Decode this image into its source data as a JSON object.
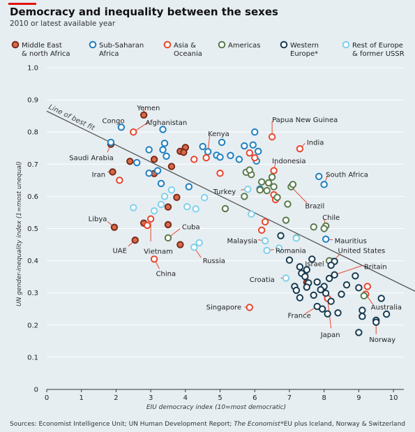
{
  "title": "Democracy and inequality between the sexes",
  "subtitle": "2010 or latest available year",
  "source": "Sources: Economist Intelligence Unit; UN Human Development Report; ",
  "source_italic": "The Economist",
  "footnote": "*EU plus Iceland, Norway & Switzerland",
  "colors": {
    "background": "#e6eef2",
    "gridline": "#ffffff",
    "fit_line": "#555555"
  },
  "chart_data": {
    "type": "scatter",
    "xlabel": "EIU democracy index (10=most democratic)",
    "ylabel": "UN gender-inequality index (1=most unequal)",
    "xlim": [
      0,
      10.3
    ],
    "ylim": [
      0,
      1.0
    ],
    "x_ticks": [
      "0",
      "1",
      "2",
      "3",
      "4",
      "5",
      "6",
      "7",
      "8",
      "9",
      "10"
    ],
    "y_ticks": [
      "0",
      "0.1",
      "0.2",
      "0.3",
      "0.4",
      "0.5",
      "0.6",
      "0.7",
      "0.8",
      "0.9",
      "1.0"
    ],
    "fit_line": {
      "label": "Line of best fit",
      "x": [
        0,
        10.8
      ],
      "y": [
        0.865,
        0.3
      ]
    },
    "series": [
      {
        "name": "Middle East & north Africa",
        "legend": [
          "Middle East",
          "& north Africa"
        ],
        "stroke": "#7a2a1a",
        "fill": "#d96b4a",
        "points": [
          [
            2.8,
            0.853
          ],
          [
            1.85,
            0.762
          ],
          [
            1.9,
            0.676
          ],
          [
            2.4,
            0.709
          ],
          [
            3.1,
            0.715
          ],
          [
            3.6,
            0.693
          ],
          [
            3.85,
            0.74
          ],
          [
            4.0,
            0.752
          ],
          [
            3.95,
            0.737
          ],
          [
            3.1,
            0.671
          ],
          [
            3.75,
            0.597
          ],
          [
            3.5,
            0.567
          ],
          [
            3.5,
            0.512
          ],
          [
            2.8,
            0.517
          ],
          [
            1.95,
            0.504
          ],
          [
            2.55,
            0.464
          ],
          [
            3.85,
            0.45
          ],
          [
            7.5,
            0.333
          ]
        ]
      },
      {
        "name": "Sub-Saharan Africa",
        "legend": [
          "Sub-Saharan",
          "Africa"
        ],
        "stroke": "#1e7fbf",
        "fill": "#ffffff",
        "points": [
          [
            2.15,
            0.815
          ],
          [
            1.85,
            0.768
          ],
          [
            3.35,
            0.808
          ],
          [
            3.4,
            0.765
          ],
          [
            3.35,
            0.745
          ],
          [
            3.45,
            0.725
          ],
          [
            2.95,
            0.745
          ],
          [
            2.6,
            0.705
          ],
          [
            2.95,
            0.672
          ],
          [
            3.2,
            0.68
          ],
          [
            4.5,
            0.755
          ],
          [
            4.65,
            0.739
          ],
          [
            4.9,
            0.728
          ],
          [
            5.05,
            0.768
          ],
          [
            5.0,
            0.722
          ],
          [
            5.3,
            0.727
          ],
          [
            5.7,
            0.757
          ],
          [
            5.95,
            0.76
          ],
          [
            6.0,
            0.8
          ],
          [
            6.1,
            0.74
          ],
          [
            6.05,
            0.71
          ],
          [
            5.55,
            0.715
          ],
          [
            4.1,
            0.63
          ],
          [
            3.3,
            0.64
          ],
          [
            7.85,
            0.662
          ],
          [
            8.0,
            0.637
          ],
          [
            8.05,
            0.467
          ],
          [
            6.15,
            0.623
          ]
        ]
      },
      {
        "name": "Asia & Oceania",
        "legend": [
          "Asia &",
          "Oceania"
        ],
        "stroke": "#e8452c",
        "fill": "#ffffff",
        "points": [
          [
            2.5,
            0.8
          ],
          [
            2.1,
            0.65
          ],
          [
            4.6,
            0.72
          ],
          [
            4.25,
            0.715
          ],
          [
            5.0,
            0.672
          ],
          [
            5.85,
            0.735
          ],
          [
            6.0,
            0.72
          ],
          [
            6.5,
            0.785
          ],
          [
            7.3,
            0.748
          ],
          [
            6.55,
            0.68
          ],
          [
            6.55,
            0.605
          ],
          [
            6.6,
            0.59
          ],
          [
            6.2,
            0.495
          ],
          [
            6.3,
            0.521
          ],
          [
            3.0,
            0.53
          ],
          [
            2.9,
            0.51
          ],
          [
            3.1,
            0.405
          ],
          [
            5.85,
            0.255
          ],
          [
            8.1,
            0.283
          ],
          [
            9.25,
            0.32
          ],
          [
            9.2,
            0.296
          ]
        ]
      },
      {
        "name": "Americas",
        "legend": [
          "Americas"
        ],
        "stroke": "#5a7a4a",
        "fill": "#ffffff",
        "points": [
          [
            5.75,
            0.675
          ],
          [
            5.9,
            0.668
          ],
          [
            5.85,
            0.682
          ],
          [
            6.2,
            0.645
          ],
          [
            6.4,
            0.642
          ],
          [
            6.5,
            0.66
          ],
          [
            6.55,
            0.63
          ],
          [
            6.15,
            0.62
          ],
          [
            6.35,
            0.618
          ],
          [
            5.7,
            0.6
          ],
          [
            7.05,
            0.63
          ],
          [
            7.1,
            0.637
          ],
          [
            6.65,
            0.597
          ],
          [
            6.95,
            0.576
          ],
          [
            5.15,
            0.562
          ],
          [
            3.5,
            0.471
          ],
          [
            6.9,
            0.526
          ],
          [
            7.2,
            0.471
          ],
          [
            7.7,
            0.505
          ],
          [
            8.05,
            0.508
          ],
          [
            8.0,
            0.5
          ],
          [
            8.25,
            0.398
          ],
          [
            8.15,
            0.4
          ],
          [
            9.15,
            0.291
          ]
        ]
      },
      {
        "name": "Western Europe*",
        "legend": [
          "Western",
          "Europe*"
        ],
        "stroke": "#173a50",
        "fill": "#ffffff",
        "points": [
          [
            6.75,
            0.478
          ],
          [
            7.0,
            0.402
          ],
          [
            7.3,
            0.381
          ],
          [
            7.35,
            0.361
          ],
          [
            7.5,
            0.372
          ],
          [
            7.45,
            0.351
          ],
          [
            7.65,
            0.405
          ],
          [
            7.55,
            0.331
          ],
          [
            7.5,
            0.318
          ],
          [
            7.15,
            0.32
          ],
          [
            7.2,
            0.308
          ],
          [
            7.3,
            0.285
          ],
          [
            7.8,
            0.334
          ],
          [
            8.0,
            0.32
          ],
          [
            8.15,
            0.345
          ],
          [
            8.3,
            0.356
          ],
          [
            8.3,
            0.398
          ],
          [
            8.2,
            0.386
          ],
          [
            7.9,
            0.31
          ],
          [
            8.05,
            0.299
          ],
          [
            7.7,
            0.293
          ],
          [
            8.2,
            0.274
          ],
          [
            8.65,
            0.325
          ],
          [
            8.9,
            0.353
          ],
          [
            9.0,
            0.316
          ],
          [
            8.5,
            0.296
          ],
          [
            7.8,
            0.258
          ],
          [
            7.95,
            0.25
          ],
          [
            8.1,
            0.235
          ],
          [
            8.4,
            0.238
          ],
          [
            9.1,
            0.246
          ],
          [
            9.1,
            0.227
          ],
          [
            9.5,
            0.215
          ],
          [
            9.65,
            0.283
          ],
          [
            9.8,
            0.234
          ],
          [
            9.0,
            0.177
          ],
          [
            9.5,
            0.209
          ]
        ]
      },
      {
        "name": "Rest of Europe & former USSR",
        "legend": [
          "Rest of Europe",
          "& former USSR"
        ],
        "stroke": "#7fd0ec",
        "fill": "#ffffff",
        "points": [
          [
            2.5,
            0.565
          ],
          [
            3.1,
            0.555
          ],
          [
            3.3,
            0.575
          ],
          [
            3.4,
            0.6
          ],
          [
            3.6,
            0.62
          ],
          [
            4.05,
            0.568
          ],
          [
            4.3,
            0.561
          ],
          [
            4.55,
            0.596
          ],
          [
            4.4,
            0.456
          ],
          [
            4.25,
            0.442
          ],
          [
            5.8,
            0.622
          ],
          [
            5.9,
            0.545
          ],
          [
            6.3,
            0.462
          ],
          [
            6.35,
            0.432
          ],
          [
            6.7,
            0.439
          ],
          [
            6.9,
            0.346
          ],
          [
            7.2,
            0.47
          ]
        ]
      }
    ],
    "labels": [
      {
        "text": "Yemen",
        "x": 2.6,
        "y": 0.875,
        "anchor": "start",
        "point": [
          2.8,
          0.853
        ],
        "lx": 2.8,
        "ly": 0.876
      },
      {
        "text": "Congo",
        "x": 1.6,
        "y": 0.835,
        "anchor": "start",
        "point": [
          2.15,
          0.815
        ],
        "lx": 2.1,
        "ly": 0.828
      },
      {
        "text": "Afghanistan",
        "x": 2.85,
        "y": 0.83,
        "anchor": "start",
        "point": [
          2.5,
          0.8
        ],
        "lx": 2.95,
        "ly": 0.832
      },
      {
        "text": "Kenya",
        "x": 4.65,
        "y": 0.795,
        "anchor": "start",
        "point": [
          4.65,
          0.739
        ],
        "lx": 4.7,
        "ly": 0.79
      },
      {
        "text": "Papua New Guinea",
        "x": 6.5,
        "y": 0.838,
        "anchor": "start",
        "point": [
          6.5,
          0.785
        ],
        "lx": 6.5,
        "ly": 0.834
      },
      {
        "text": "India",
        "x": 7.5,
        "y": 0.768,
        "anchor": "start",
        "point": [
          7.3,
          0.748
        ],
        "lx": 7.45,
        "ly": 0.765
      },
      {
        "text": "Saudi Arabia",
        "x": 0.65,
        "y": 0.72,
        "anchor": "start",
        "point": [
          1.85,
          0.762
        ],
        "lx": 1.75,
        "ly": 0.737
      },
      {
        "text": "Indonesia",
        "x": 6.5,
        "y": 0.71,
        "anchor": "start",
        "point": [
          6.55,
          0.68
        ],
        "lx": 6.6,
        "ly": 0.705
      },
      {
        "text": "Iran",
        "x": 1.3,
        "y": 0.668,
        "anchor": "start",
        "point": [
          1.9,
          0.676
        ],
        "lx": 1.75,
        "ly": 0.676
      },
      {
        "text": "South Africa",
        "x": 8.05,
        "y": 0.668,
        "anchor": "start",
        "point": [
          8.0,
          0.637
        ],
        "lx": 8.1,
        "ly": 0.666
      },
      {
        "text": "Turkey",
        "x": 4.8,
        "y": 0.615,
        "anchor": "start",
        "point": [
          5.8,
          0.622
        ],
        "lx": 5.6,
        "ly": 0.62
      },
      {
        "text": "Brazil",
        "x": 7.45,
        "y": 0.57,
        "anchor": "start",
        "point": [
          7.05,
          0.63
        ],
        "lx": 7.5,
        "ly": 0.58
      },
      {
        "text": "Chile",
        "x": 7.95,
        "y": 0.535,
        "anchor": "start",
        "point": [
          8.05,
          0.508
        ],
        "lx": 8.0,
        "ly": 0.528
      },
      {
        "text": "Libya",
        "x": 1.2,
        "y": 0.53,
        "anchor": "start",
        "point": [
          1.95,
          0.504
        ],
        "lx": 1.75,
        "ly": 0.522
      },
      {
        "text": "Cuba",
        "x": 3.9,
        "y": 0.505,
        "anchor": "start",
        "point": [
          3.5,
          0.471
        ],
        "lx": 3.85,
        "ly": 0.5
      },
      {
        "text": "Mauritius",
        "x": 8.3,
        "y": 0.462,
        "anchor": "start",
        "point": [
          8.05,
          0.467
        ],
        "lx": 8.25,
        "ly": 0.465
      },
      {
        "text": "Malaysia",
        "x": 5.2,
        "y": 0.462,
        "anchor": "start",
        "point": [
          6.3,
          0.462
        ],
        "lx": 6.1,
        "ly": 0.465
      },
      {
        "text": "Vietnam",
        "x": 2.8,
        "y": 0.43,
        "anchor": "start",
        "point": [
          3.0,
          0.53
        ],
        "lx": 3.0,
        "ly": 0.46
      },
      {
        "text": "UAE",
        "x": 1.9,
        "y": 0.432,
        "anchor": "start",
        "point": [
          2.55,
          0.464
        ],
        "lx": 2.35,
        "ly": 0.445
      },
      {
        "text": "Romania",
        "x": 6.6,
        "y": 0.432,
        "anchor": "start",
        "point": [
          6.35,
          0.432
        ],
        "lx": 6.55,
        "ly": 0.435
      },
      {
        "text": "United States",
        "x": 8.4,
        "y": 0.432,
        "anchor": "start",
        "point": [
          8.25,
          0.398
        ],
        "lx": 8.45,
        "ly": 0.42
      },
      {
        "text": "Russia",
        "x": 4.5,
        "y": 0.4,
        "anchor": "start",
        "point": [
          4.25,
          0.442
        ],
        "lx": 4.45,
        "ly": 0.41
      },
      {
        "text": "Israel",
        "x": 7.45,
        "y": 0.39,
        "anchor": "start",
        "point": [
          7.5,
          0.333
        ],
        "lx": 7.55,
        "ly": 0.38
      },
      {
        "text": "Britain",
        "x": 9.15,
        "y": 0.382,
        "anchor": "start",
        "point": [
          8.3,
          0.356
        ],
        "lx": 9.1,
        "ly": 0.385
      },
      {
        "text": "China",
        "x": 3.15,
        "y": 0.36,
        "anchor": "start",
        "point": [
          3.1,
          0.405
        ],
        "lx": 3.25,
        "ly": 0.375
      },
      {
        "text": "Croatia",
        "x": 5.85,
        "y": 0.342,
        "anchor": "start",
        "point": [
          6.9,
          0.346
        ],
        "lx": 6.75,
        "ly": 0.346
      },
      {
        "text": "Singapore",
        "x": 4.6,
        "y": 0.256,
        "anchor": "start",
        "point": [
          5.85,
          0.255
        ],
        "lx": 5.7,
        "ly": 0.256
      },
      {
        "text": "Australia",
        "x": 9.35,
        "y": 0.256,
        "anchor": "start",
        "point": [
          9.2,
          0.296
        ],
        "lx": 9.4,
        "ly": 0.265
      },
      {
        "text": "France",
        "x": 6.95,
        "y": 0.23,
        "anchor": "start",
        "point": [
          7.8,
          0.258
        ],
        "lx": 7.45,
        "ly": 0.235
      },
      {
        "text": "Japan",
        "x": 7.9,
        "y": 0.17,
        "anchor": "start",
        "point": [
          8.1,
          0.283
        ],
        "lx": 8.2,
        "ly": 0.19
      },
      {
        "text": "Norway",
        "x": 9.3,
        "y": 0.155,
        "anchor": "start",
        "point": [
          9.5,
          0.209
        ],
        "lx": 9.5,
        "ly": 0.172
      }
    ]
  }
}
